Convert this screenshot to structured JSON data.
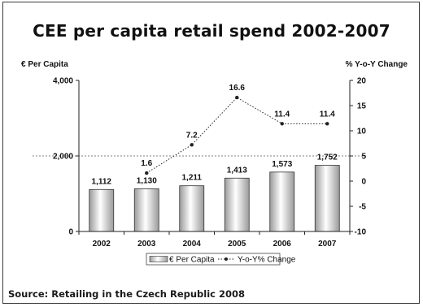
{
  "title": "CEE per capita retail spend 2002-2007",
  "source": "Source: Retailing in the Czech Republic  2008",
  "chart_data": {
    "type": "bar",
    "categories": [
      "2002",
      "2003",
      "2004",
      "2005",
      "2006",
      "2007"
    ],
    "series": [
      {
        "name": "€ Per Capita",
        "type": "bar",
        "axis": "left",
        "values": [
          1112,
          1130,
          1211,
          1413,
          1573,
          1752
        ],
        "labels": [
          "1,112",
          "1,130",
          "1,211",
          "1,413",
          "1,573",
          "1,752"
        ]
      },
      {
        "name": "Y-o-Y% Change",
        "type": "line",
        "axis": "right",
        "values": [
          null,
          1.6,
          7.2,
          16.6,
          11.4,
          11.4
        ],
        "labels": [
          "",
          "1.6",
          "7.2",
          "16.6",
          "11.4",
          "11.4"
        ]
      }
    ],
    "ylabel_left": "€ Per Capita",
    "ylabel_right": "% Y-o-Y Change",
    "ylim_left": [
      0,
      4000
    ],
    "ylim_right": [
      -10,
      20
    ],
    "yticks_left": [
      "0",
      "2,000",
      "4,000"
    ],
    "yticks_right": [
      "-10",
      "-5",
      "0",
      "5",
      "10",
      "15",
      "20"
    ],
    "yticks_right_values": [
      -10,
      -5,
      0,
      5,
      10,
      15,
      20
    ],
    "yticks_left_values": [
      0,
      2000,
      4000
    ],
    "grid": "dashed horizontal line at 2,000",
    "legend_position": "bottom-center",
    "colors": {
      "bar_fill_light": "#ffffff",
      "bar_fill_dark": "#a8a8a8",
      "line": "#222222"
    }
  }
}
